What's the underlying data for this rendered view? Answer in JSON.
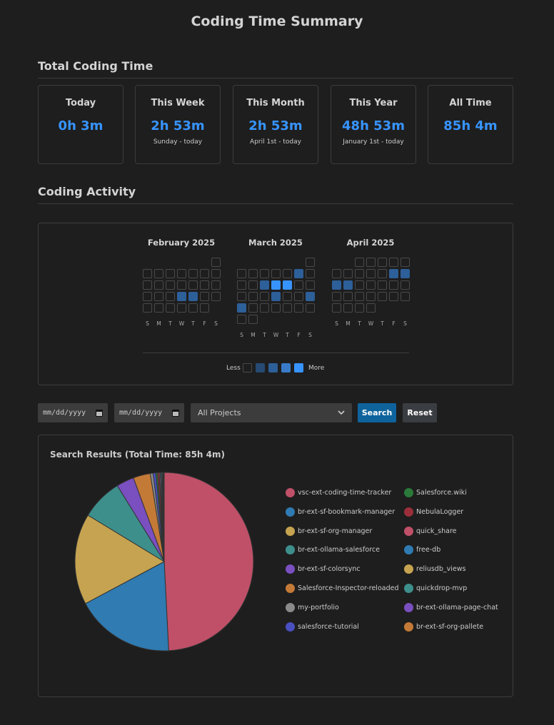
{
  "title": "Coding Time Summary",
  "total_section": {
    "heading": "Total Coding Time",
    "cards": [
      {
        "label": "Today",
        "value": "0h 3m",
        "sub": ""
      },
      {
        "label": "This Week",
        "value": "2h 53m",
        "sub": "Sunday - today"
      },
      {
        "label": "This Month",
        "value": "2h 53m",
        "sub": "April 1st - today"
      },
      {
        "label": "This Year",
        "value": "48h 53m",
        "sub": "January 1st - today"
      },
      {
        "label": "All Time",
        "value": "85h 4m",
        "sub": ""
      }
    ]
  },
  "activity_section": {
    "heading": "Coding Activity",
    "months": [
      {
        "label": "February 2025",
        "weeks": [
          [
            null,
            null,
            null,
            null,
            null,
            null,
            0
          ],
          [
            0,
            0,
            0,
            0,
            0,
            0,
            0
          ],
          [
            0,
            0,
            0,
            0,
            0,
            0,
            0
          ],
          [
            0,
            0,
            0,
            2,
            2,
            0,
            0
          ],
          [
            0,
            0,
            0,
            0,
            0,
            0
          ]
        ]
      },
      {
        "label": "March 2025",
        "weeks": [
          [
            null,
            null,
            null,
            null,
            null,
            null,
            0
          ],
          [
            0,
            0,
            0,
            0,
            0,
            2,
            0
          ],
          [
            0,
            0,
            2,
            4,
            4,
            0,
            0
          ],
          [
            0,
            0,
            0,
            2,
            0,
            0,
            2
          ],
          [
            2,
            0,
            0,
            0,
            0,
            0,
            0
          ],
          [
            0,
            0
          ]
        ]
      },
      {
        "label": "April 2025",
        "weeks": [
          [
            null,
            null,
            0,
            0,
            0,
            0,
            0
          ],
          [
            0,
            0,
            0,
            0,
            0,
            2,
            2
          ],
          [
            2,
            2,
            0,
            0,
            0,
            0,
            0
          ],
          [
            0,
            0,
            0,
            0,
            0,
            0,
            0
          ],
          [
            0,
            0,
            0,
            0
          ]
        ]
      }
    ],
    "day_labels": [
      "S",
      "M",
      "T",
      "W",
      "T",
      "F",
      "S"
    ],
    "legend_less": "Less",
    "legend_more": "More",
    "legend_levels": [
      "#1e1e1e",
      "#264a73",
      "#2d5f99",
      "#3a7bc8",
      "#3794ff"
    ]
  },
  "filters": {
    "start_date_placeholder": "mm/dd/yyyy",
    "end_date_placeholder": "mm/dd/yyyy",
    "project_selected": "All Projects",
    "search_label": "Search",
    "reset_label": "Reset"
  },
  "results": {
    "title": "Search Results (Total Time: 85h 4m)",
    "legend_left": [
      {
        "name": "vsc-ext-coding-time-tracker",
        "color": "#bf5068"
      },
      {
        "name": "br-ext-sf-bookmark-manager",
        "color": "#2f7bb2"
      },
      {
        "name": "br-ext-sf-org-manager",
        "color": "#c6a350"
      },
      {
        "name": "br-ext-ollama-salesforce",
        "color": "#3d8f8c"
      },
      {
        "name": "br-ext-sf-colorsync",
        "color": "#7a4fbf"
      },
      {
        "name": "Salesforce-Inspector-reloaded",
        "color": "#c47a37"
      },
      {
        "name": "my-portfolio",
        "color": "#8a8a8a"
      },
      {
        "name": "salesforce-tutorial",
        "color": "#4a4fbf"
      }
    ],
    "legend_right": [
      {
        "name": "Salesforce.wiki",
        "color": "#2b7a3b"
      },
      {
        "name": "NebulaLogger",
        "color": "#9a2f3a"
      },
      {
        "name": "quick_share",
        "color": "#bf5068"
      },
      {
        "name": "free-db",
        "color": "#2f7bb2"
      },
      {
        "name": "reliusdb_views",
        "color": "#c6a350"
      },
      {
        "name": "quickdrop-mvp",
        "color": "#3d8f8c"
      },
      {
        "name": "br-ext-ollama-page-chat",
        "color": "#7a4fbf"
      },
      {
        "name": "br-ext-sf-org-pallete",
        "color": "#c47a37"
      }
    ]
  },
  "chart_data": {
    "type": "pie",
    "title": "Search Results (Total Time: 85h 4m)",
    "units": "percent of total time (estimated)",
    "slices": [
      {
        "name": "vsc-ext-coding-time-tracker",
        "value": 49.2,
        "color": "#bf5068"
      },
      {
        "name": "br-ext-sf-bookmark-manager",
        "value": 18.0,
        "color": "#2f7bb2"
      },
      {
        "name": "br-ext-sf-org-manager",
        "value": 16.5,
        "color": "#c6a350"
      },
      {
        "name": "br-ext-ollama-salesforce",
        "value": 7.5,
        "color": "#3d8f8c"
      },
      {
        "name": "br-ext-sf-colorsync",
        "value": 3.2,
        "color": "#7a4fbf"
      },
      {
        "name": "Salesforce-Inspector-reloaded",
        "value": 3.1,
        "color": "#c47a37"
      },
      {
        "name": "my-portfolio",
        "value": 0.5,
        "color": "#8a8a8a"
      },
      {
        "name": "salesforce-tutorial",
        "value": 0.5,
        "color": "#4a4fbf"
      },
      {
        "name": "Salesforce.wiki",
        "value": 0.3,
        "color": "#2b7a3b"
      },
      {
        "name": "NebulaLogger",
        "value": 0.3,
        "color": "#9a2f3a"
      },
      {
        "name": "quick_share",
        "value": 0.2,
        "color": "#bf5068"
      },
      {
        "name": "free-db",
        "value": 0.2,
        "color": "#2f7bb2"
      },
      {
        "name": "reliusdb_views",
        "value": 0.15,
        "color": "#c6a350"
      },
      {
        "name": "quickdrop-mvp",
        "value": 0.15,
        "color": "#3d8f8c"
      },
      {
        "name": "br-ext-ollama-page-chat",
        "value": 0.1,
        "color": "#7a4fbf"
      },
      {
        "name": "br-ext-sf-org-pallete",
        "value": 0.1,
        "color": "#c47a37"
      }
    ]
  }
}
